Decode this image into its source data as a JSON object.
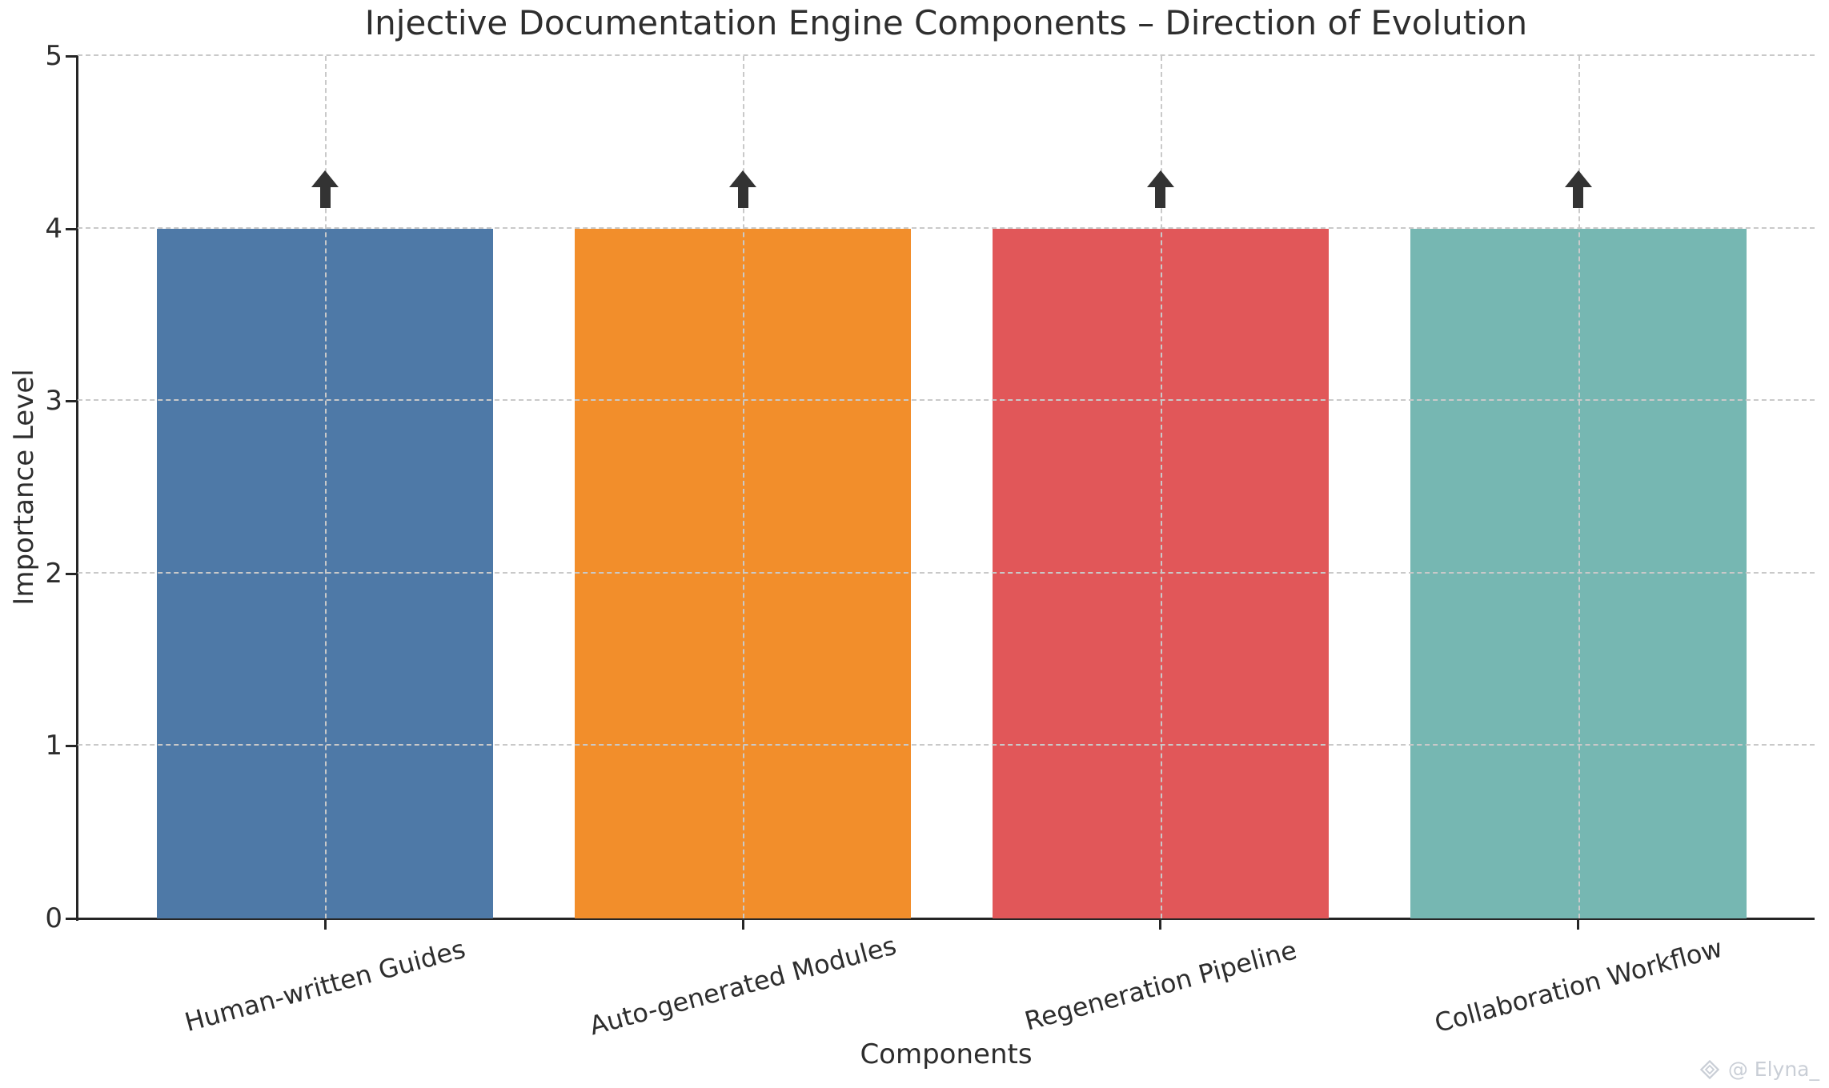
{
  "chart_data": {
    "type": "bar",
    "title": "Injective Documentation Engine Components – Direction of Evolution",
    "xlabel": "Components",
    "ylabel": "Importance Level",
    "categories": [
      "Human-written Guides",
      "Auto-generated Modules",
      "Regeneration Pipeline",
      "Collaboration Workflow"
    ],
    "values": [
      4,
      4,
      4,
      4
    ],
    "bar_colors": [
      "#4E79A7",
      "#F28E2B",
      "#E15759",
      "#76B7B2"
    ],
    "ylim": [
      0,
      5
    ],
    "yticks": [
      "0",
      "1",
      "2",
      "3",
      "4",
      "5"
    ],
    "grid": "dashed, both axes, drawn over bars",
    "legend": "none",
    "annotations": [
      {
        "symbol": "up-arrow",
        "above_category": "Human-written Guides",
        "y": 4.2
      },
      {
        "symbol": "up-arrow",
        "above_category": "Auto-generated Modules",
        "y": 4.2
      },
      {
        "symbol": "up-arrow",
        "above_category": "Regeneration Pipeline",
        "y": 4.2
      },
      {
        "symbol": "up-arrow",
        "above_category": "Collaboration Workflow",
        "y": 4.2
      }
    ]
  },
  "watermark": {
    "icon": "diamond-logo-icon",
    "text": "@ Elyna_"
  },
  "colors": {
    "background": "#ffffff",
    "text": "#2d2d2d",
    "axis": "#262626",
    "grid": "#c9c9c9",
    "arrow": "#333333",
    "watermark": "#c9ced6"
  }
}
